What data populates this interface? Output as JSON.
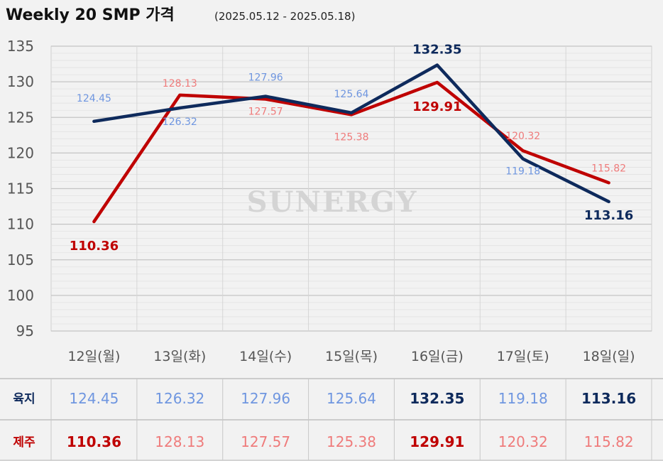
{
  "title": "Weekly 20 SMP 가격",
  "subtitle": "(2025.05.12 - 2025.05.18)",
  "watermark": "SUNERGY",
  "colors": {
    "land": "#0e2a5c",
    "land_light": "#6f96e0",
    "jeju": "#bf0000",
    "jeju_light": "#ef7b7b",
    "grid": "#d0d0d0",
    "axis_text": "#555555"
  },
  "chart_data": {
    "type": "line",
    "title": "Weekly 20 SMP 가격",
    "subtitle": "(2025.05.12 - 2025.05.18)",
    "categories": [
      "12일(월)",
      "13일(화)",
      "14일(수)",
      "15일(목)",
      "16일(금)",
      "17일(토)",
      "18일(일)"
    ],
    "y_ticks": [
      95,
      100,
      105,
      110,
      115,
      120,
      125,
      130,
      135
    ],
    "ylim": [
      95,
      135
    ],
    "grid": true,
    "series": [
      {
        "name": "육지",
        "values": [
          124.45,
          126.32,
          127.96,
          125.64,
          132.35,
          119.18,
          113.16
        ],
        "labels": [
          "124.45",
          "126.32",
          "127.96",
          "125.64",
          "132.35",
          "119.18",
          "113.16"
        ]
      },
      {
        "name": "제주",
        "values": [
          110.36,
          128.13,
          127.57,
          125.38,
          129.91,
          120.32,
          115.82
        ],
        "labels": [
          "110.36",
          "128.13",
          "127.57",
          "125.38",
          "129.91",
          "120.32",
          "115.82"
        ]
      }
    ]
  },
  "table": {
    "rows": [
      {
        "label": "육지",
        "values": [
          "124.45",
          "126.32",
          "127.96",
          "125.64",
          "132.35",
          "119.18",
          "113.16"
        ],
        "bold": [
          false,
          false,
          false,
          false,
          true,
          false,
          true
        ]
      },
      {
        "label": "제주",
        "values": [
          "110.36",
          "128.13",
          "127.57",
          "125.38",
          "129.91",
          "120.32",
          "115.82"
        ],
        "bold": [
          true,
          false,
          false,
          false,
          true,
          false,
          false
        ]
      }
    ]
  }
}
